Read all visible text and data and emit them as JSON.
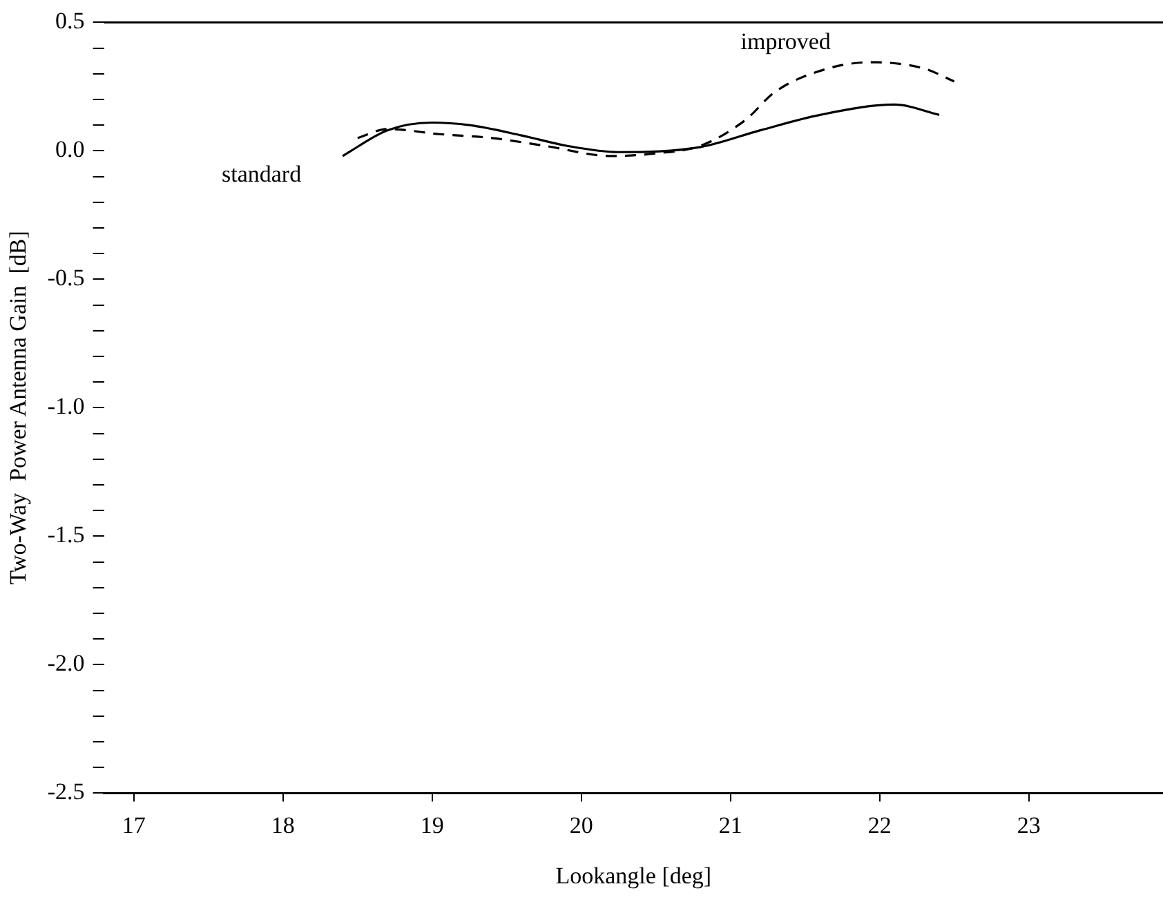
{
  "chart_data": {
    "type": "line",
    "xlabel": "Lookangle [deg]",
    "ylabel": "Two-Way  Power Antenna Gain  [dB]",
    "xlim": [
      16.8,
      23.9
    ],
    "xticks": [
      17,
      18,
      19,
      20,
      21,
      22,
      23
    ],
    "ylim": [
      -2.5,
      0.5
    ],
    "yticks": [
      {
        "value": -2.5,
        "label": "-2.5"
      },
      {
        "value": -2.4,
        "label": null
      },
      {
        "value": -2.3,
        "label": null
      },
      {
        "value": -2.2,
        "label": null
      },
      {
        "value": -2.1,
        "label": null
      },
      {
        "value": -2,
        "label": "-2.0"
      },
      {
        "value": -1.9,
        "label": null
      },
      {
        "value": -1.8,
        "label": null
      },
      {
        "value": -1.7,
        "label": null
      },
      {
        "value": -1.6,
        "label": null
      },
      {
        "value": -1.5,
        "label": "-1.5"
      },
      {
        "value": -1.4,
        "label": null
      },
      {
        "value": -1.3,
        "label": null
      },
      {
        "value": -1.2,
        "label": null
      },
      {
        "value": -1.1,
        "label": null
      },
      {
        "value": -1,
        "label": "-1.0"
      },
      {
        "value": -0.9,
        "label": null
      },
      {
        "value": -0.8,
        "label": null
      },
      {
        "value": -0.7,
        "label": null
      },
      {
        "value": -0.6,
        "label": null
      },
      {
        "value": -0.5,
        "label": "-0.5"
      },
      {
        "value": -0.4,
        "label": null
      },
      {
        "value": -0.3,
        "label": null
      },
      {
        "value": -0.2,
        "label": null
      },
      {
        "value": -0.1,
        "label": null
      },
      {
        "value": 0,
        "label": "0.0"
      },
      {
        "value": 0.1,
        "label": null
      },
      {
        "value": 0.2,
        "label": null
      },
      {
        "value": 0.3,
        "label": null
      },
      {
        "value": 0.4,
        "label": null
      },
      {
        "value": 0.5,
        "label": "0.5"
      }
    ],
    "grid": false,
    "legend": false,
    "marker": "none",
    "series": [
      {
        "name": "standard",
        "color": "#000000",
        "line_style": "solid",
        "x": [
          18.4,
          18.7,
          19.0,
          19.25,
          19.6,
          19.9,
          20.25,
          20.8,
          21.2,
          21.6,
          22.1,
          22.4
        ],
        "values": [
          -0.02,
          0.08,
          0.11,
          0.1,
          0.06,
          0.02,
          -0.005,
          0.015,
          0.08,
          0.14,
          0.18,
          0.14
        ]
      },
      {
        "name": "improved",
        "color": "#000000",
        "line_style": "dashed",
        "x": [
          18.5,
          18.7,
          19.05,
          19.4,
          19.75,
          20.2,
          20.5,
          20.8,
          21.1,
          21.3,
          21.65,
          21.95,
          22.3,
          22.5
        ],
        "values": [
          0.05,
          0.085,
          0.065,
          0.05,
          0.02,
          -0.02,
          -0.01,
          0.02,
          0.12,
          0.23,
          0.32,
          0.345,
          0.32,
          0.27
        ]
      }
    ]
  }
}
